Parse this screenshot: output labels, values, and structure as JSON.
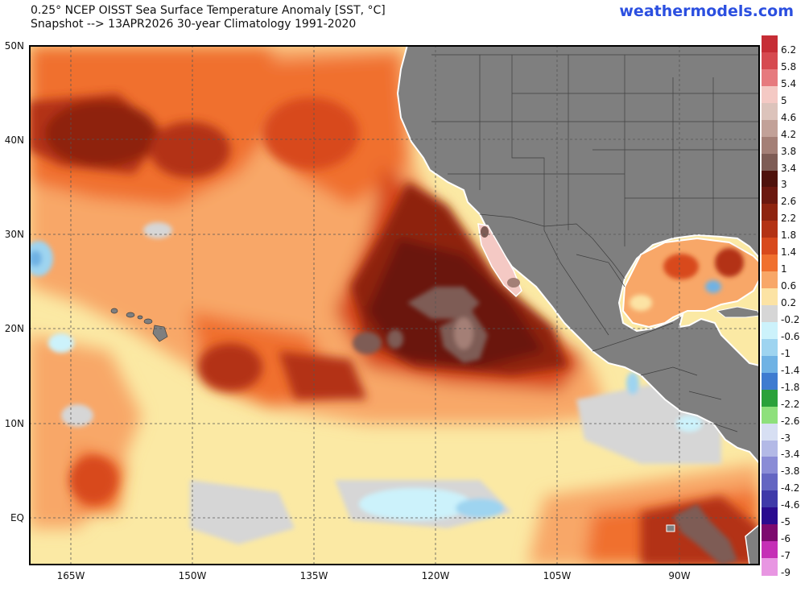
{
  "header": {
    "title_line1": "0.25° NCEP OISST Sea Surface Temperature Anomaly [SST, °C]",
    "title_line2": "Snapshot --> 13APR2026   30-year Climatology 1991-2020",
    "brand": "weathermodels.com"
  },
  "map": {
    "lat_labels": [
      "50N",
      "40N",
      "30N",
      "20N",
      "10N",
      "EQ"
    ],
    "lon_labels": [
      "165W",
      "150W",
      "135W",
      "120W",
      "105W",
      "90W"
    ],
    "land_color": "#7f7f7f",
    "ocean_base_color": "#fbe9a4",
    "features": {
      "hawaii": "Hawaiian Islands",
      "baja": "Baja California",
      "gulf": "Gulf of Mexico",
      "galapagos": "Galapagos Islands"
    }
  },
  "legend": {
    "entries": [
      {
        "label": "6.2",
        "color": "#c62d35"
      },
      {
        "label": "5.8",
        "color": "#d64a50"
      },
      {
        "label": "5.4",
        "color": "#e67a7e"
      },
      {
        "label": "5",
        "color": "#f4c9c4"
      },
      {
        "label": "4.6",
        "color": "#dcc3bb"
      },
      {
        "label": "4.2",
        "color": "#c2a198"
      },
      {
        "label": "3.8",
        "color": "#a47f76"
      },
      {
        "label": "3.4",
        "color": "#7e5c55"
      },
      {
        "label": "3",
        "color": "#4f120c"
      },
      {
        "label": "2.6",
        "color": "#6b180f"
      },
      {
        "label": "2.2",
        "color": "#8e2410"
      },
      {
        "label": "1.8",
        "color": "#b33214"
      },
      {
        "label": "1.4",
        "color": "#d8491c"
      },
      {
        "label": "1",
        "color": "#f0702f"
      },
      {
        "label": "0.6",
        "color": "#f8a768"
      },
      {
        "label": "0.2",
        "color": "#fce3a4"
      },
      {
        "label": "-0.2",
        "color": "#d6d6d6"
      },
      {
        "label": "-0.6",
        "color": "#ccf2fb"
      },
      {
        "label": "-1",
        "color": "#9ed4f0"
      },
      {
        "label": "-1.4",
        "color": "#6fb2e4"
      },
      {
        "label": "-1.8",
        "color": "#3e7bd0"
      },
      {
        "label": "-2.2",
        "color": "#2aa13a"
      },
      {
        "label": "-2.6",
        "color": "#8ee07c"
      },
      {
        "label": "-3",
        "color": "#d7dff3"
      },
      {
        "label": "-3.4",
        "color": "#b3b9e6"
      },
      {
        "label": "-3.8",
        "color": "#8a8cd6"
      },
      {
        "label": "-4.2",
        "color": "#6466c2"
      },
      {
        "label": "-4.6",
        "color": "#3f3aa9"
      },
      {
        "label": "-5",
        "color": "#2a0b8f"
      },
      {
        "label": "-6",
        "color": "#7d0a6f"
      },
      {
        "label": "-7",
        "color": "#c52fb6"
      },
      {
        "label": "-9",
        "color": "#e896e2"
      }
    ]
  }
}
